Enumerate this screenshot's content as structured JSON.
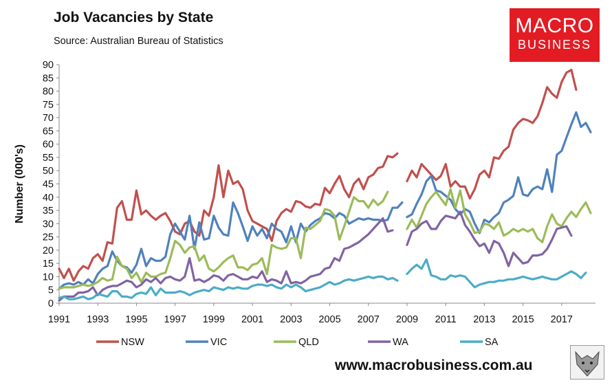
{
  "header": {
    "title": "Job Vacancies by State",
    "subtitle": "Source: Australian Bureau of Statistics"
  },
  "logo": {
    "line1": "MACRO",
    "line2": "BUSINESS"
  },
  "footer": {
    "url": "www.macrobusiness.com.au"
  },
  "chart_data": {
    "type": "line",
    "title": "Job Vacancies by State",
    "subtitle": "Source: Australian Bureau of Statistics",
    "xlabel": "",
    "ylabel": "Number (000's)",
    "xlim": [
      1991,
      2018.75
    ],
    "ylim": [
      0,
      90
    ],
    "yticks": [
      0,
      5,
      10,
      15,
      20,
      25,
      30,
      35,
      40,
      45,
      50,
      55,
      60,
      65,
      70,
      75,
      80,
      85,
      90
    ],
    "xticks": [
      1991,
      1993,
      1995,
      1997,
      1999,
      2001,
      2003,
      2005,
      2007,
      2009,
      2011,
      2013,
      2015,
      2017
    ],
    "grid": false,
    "legend_position": "bottom",
    "colors": {
      "NSW": "#c0504d",
      "VIC": "#4f81bd",
      "QLD": "#9bbb59",
      "WA": "#8064a2",
      "SA": "#4bacc6"
    },
    "segments": [
      {
        "start": 1991.0,
        "step": 0.25
      },
      {
        "start": 2009.0,
        "step": 0.25
      }
    ],
    "series": [
      {
        "name": "NSW",
        "segment_values": [
          [
            13,
            9.5,
            13,
            8.5,
            12,
            14,
            13,
            17,
            18.5,
            16,
            23,
            22.5,
            36,
            38.5,
            31.5,
            31.5,
            42.5,
            33.5,
            35,
            33,
            31.5,
            33,
            34,
            31,
            27,
            26,
            30,
            31,
            27,
            25.5,
            35,
            33,
            40,
            52,
            40,
            50,
            45,
            46,
            43,
            35,
            31,
            30,
            29,
            28,
            23.5,
            31,
            34,
            35.5,
            34.5,
            38.5,
            38,
            36.5,
            36,
            37.5,
            37,
            43.5,
            41.5,
            45,
            48,
            43,
            40,
            45,
            47,
            43,
            47.5,
            48.5,
            51,
            51.5,
            55.5,
            55,
            56.5
          ],
          [
            46,
            50,
            47.5,
            52.5,
            50.5,
            48.5,
            46.5,
            48,
            52.5,
            44,
            46,
            44,
            44,
            39.5,
            43,
            48.5,
            50,
            47.5,
            55,
            54.5,
            57.5,
            59,
            65.5,
            68,
            69.5,
            69,
            68,
            70.5,
            75.5,
            81.5,
            79,
            77.5,
            83.5,
            87,
            88,
            80.5
          ]
        ]
      },
      {
        "name": "VIC",
        "segment_values": [
          [
            5.5,
            7,
            7.5,
            7,
            8,
            7,
            9,
            7.5,
            11,
            13,
            14,
            19.5,
            16,
            14,
            13.5,
            11.5,
            14.5,
            20.5,
            14,
            17,
            16,
            16,
            17.5,
            26,
            30,
            27,
            24,
            33,
            20.5,
            30.5,
            24,
            24.5,
            33,
            28.5,
            26,
            25.5,
            38,
            34,
            29,
            23.5,
            29,
            25.5,
            28,
            24.5,
            30,
            28,
            27,
            23,
            29,
            23,
            30,
            27,
            29.5,
            31,
            32,
            34,
            33.5,
            32,
            34,
            33,
            30,
            31,
            32,
            31.5,
            32,
            31.5,
            31.5,
            31,
            31.5,
            36,
            36,
            38
          ],
          [
            32.5,
            33.5,
            37.5,
            41,
            46,
            48,
            42.5,
            42,
            40.5,
            39,
            35.5,
            33.5,
            35.5,
            34.5,
            30,
            26.5,
            31.5,
            30.5,
            32.5,
            34,
            38,
            39,
            40.5,
            47.5,
            41,
            40.5,
            43,
            44,
            43,
            50.5,
            42,
            56,
            57.5,
            62.5,
            67.5,
            72,
            66.5,
            68,
            64.5
          ]
        ]
      },
      {
        "name": "QLD",
        "segment_values": [
          [
            5.5,
            6,
            6,
            6,
            6.5,
            7,
            6.5,
            7,
            8,
            9.5,
            8.5,
            9,
            17.5,
            14,
            13,
            9.5,
            11.5,
            8,
            11.5,
            10,
            10,
            11,
            11.5,
            17,
            23.5,
            22,
            19,
            21,
            21.5,
            16,
            18,
            13,
            12,
            13.5,
            15.5,
            17,
            18,
            13.5,
            13.5,
            12.5,
            14.5,
            15,
            17,
            11,
            22,
            21,
            20.5,
            21,
            24.5,
            24.5,
            17,
            28.5,
            28,
            29.5,
            31,
            35.5,
            35,
            33,
            24,
            29,
            34.5,
            40,
            38.5,
            38.5,
            36,
            39,
            37,
            38.5,
            42
          ],
          [
            28,
            31.5,
            28.5,
            33,
            37.5,
            40,
            42,
            39.5,
            37,
            43,
            36,
            42.5,
            33.5,
            30.5,
            26.5,
            27,
            30,
            29.5,
            28,
            30.5,
            25.5,
            26.5,
            28,
            27,
            28,
            27,
            28,
            24.5,
            23,
            29,
            33.5,
            30,
            29,
            32,
            34.5,
            32.5,
            35.5,
            38,
            34
          ]
        ]
      },
      {
        "name": "WA",
        "segment_values": [
          [
            1,
            2.5,
            2.5,
            2.5,
            4,
            4,
            4.5,
            6,
            3,
            5,
            6,
            6.5,
            6.5,
            7.5,
            8.5,
            8,
            6,
            7,
            9,
            8,
            9.5,
            7.5,
            9.5,
            10,
            9,
            8.5,
            10,
            17,
            8.5,
            9,
            8,
            9,
            10.5,
            10,
            8.5,
            10.5,
            11,
            10,
            9,
            9,
            10,
            9.5,
            12,
            8,
            9,
            8.5,
            7.5,
            12,
            7.5,
            8,
            7.5,
            8.5,
            10,
            10.5,
            11,
            13,
            13.5,
            17,
            16,
            20.5,
            21,
            22,
            23,
            24.5,
            26,
            28,
            30,
            32,
            27,
            27.5
          ],
          [
            22,
            27,
            28,
            30,
            31,
            28,
            28,
            31,
            33,
            32.5,
            32,
            34.5,
            29.5,
            27,
            24,
            21.5,
            22.5,
            19,
            23.5,
            22.5,
            19,
            14,
            19,
            17,
            15,
            15.5,
            18,
            18,
            18.5,
            20.5,
            24,
            28,
            28.5,
            29,
            25.5
          ]
        ]
      },
      {
        "name": "SA",
        "segment_values": [
          [
            2,
            2.5,
            1.5,
            1.5,
            2,
            2.5,
            1.5,
            2,
            3.5,
            3,
            2.5,
            4.5,
            4.5,
            2.5,
            2.5,
            2,
            3.5,
            4,
            3.5,
            6,
            3,
            5.5,
            4,
            4,
            4,
            4.5,
            4,
            3,
            4,
            4.5,
            5,
            4.5,
            6,
            5.5,
            5,
            6,
            5.5,
            6,
            5.5,
            5.5,
            6.5,
            7,
            7,
            6.5,
            7,
            6,
            5.5,
            7,
            6,
            7,
            6,
            4.5,
            5,
            5.5,
            6,
            7,
            8,
            7,
            7.5,
            8.5,
            9,
            8.5,
            9,
            9.5,
            10,
            9.5,
            10,
            10,
            9,
            9.5,
            8.5
          ],
          [
            11,
            13,
            14.5,
            13,
            16.5,
            10.5,
            10,
            9,
            9,
            10.5,
            10,
            10.5,
            10,
            8,
            6,
            7,
            7.5,
            8,
            8,
            8.5,
            8.5,
            9,
            9,
            9.5,
            10,
            9.5,
            9,
            9.5,
            10,
            9.5,
            9,
            9,
            10,
            11,
            12,
            11,
            9.5,
            11.5
          ]
        ]
      }
    ]
  }
}
